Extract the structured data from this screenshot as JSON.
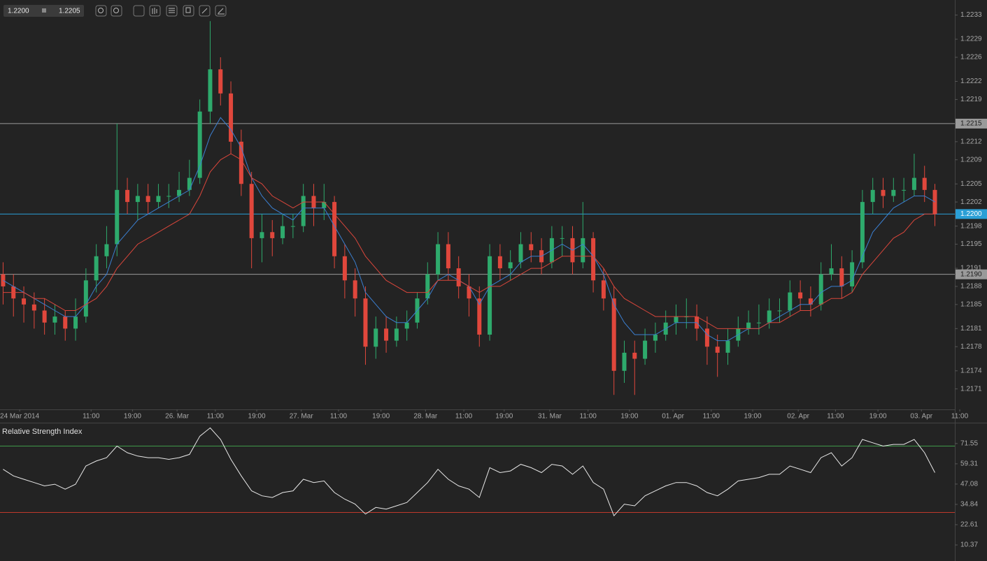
{
  "quote": {
    "bid": "1.2200",
    "ask": "1.2205"
  },
  "chart_data": [
    {
      "type": "candlestick",
      "up_color": "#2eaa6c",
      "down_color": "#e0473c",
      "xlim": [
        -0.3,
        92.6
      ],
      "ylim": [
        1.21676,
        1.22355
      ],
      "yticks": [
        1.2233,
        1.2229,
        1.2226,
        1.2222,
        1.2219,
        1.2212,
        1.2209,
        1.2205,
        1.2202,
        1.2198,
        1.2195,
        1.2191,
        1.2188,
        1.2185,
        1.2181,
        1.2178,
        1.2174,
        1.2171
      ],
      "xticks": [
        {
          "value": 1.6,
          "label": "24 Mar 2014"
        },
        {
          "value": 8.5,
          "label": "11:00"
        },
        {
          "value": 12.5,
          "label": "19:00"
        },
        {
          "value": 16.8,
          "label": "26. Mar"
        },
        {
          "value": 20.5,
          "label": "11:00"
        },
        {
          "value": 24.5,
          "label": "19:00"
        },
        {
          "value": 28.8,
          "label": "27. Mar"
        },
        {
          "value": 32.4,
          "label": "11:00"
        },
        {
          "value": 36.5,
          "label": "19:00"
        },
        {
          "value": 40.8,
          "label": "28. Mar"
        },
        {
          "value": 44.5,
          "label": "11:00"
        },
        {
          "value": 48.4,
          "label": "19:00"
        },
        {
          "value": 52.8,
          "label": "31. Mar"
        },
        {
          "value": 56.5,
          "label": "11:00"
        },
        {
          "value": 60.5,
          "label": "19:00"
        },
        {
          "value": 64.7,
          "label": "01. Apr"
        },
        {
          "value": 68.4,
          "label": "11:00"
        },
        {
          "value": 72.4,
          "label": "19:00"
        },
        {
          "value": 76.8,
          "label": "02. Apr"
        },
        {
          "value": 80.4,
          "label": "11:00"
        },
        {
          "value": 84.5,
          "label": "19:00"
        },
        {
          "value": 88.7,
          "label": "03. Apr"
        },
        {
          "value": 92.4,
          "label": "11:00"
        }
      ],
      "levels": [
        {
          "value": 1.2215,
          "label": "1.2215",
          "color": "#9a9a9a"
        },
        {
          "value": 1.22,
          "label": "1.2200",
          "color": "#2a9fd6"
        },
        {
          "value": 1.219,
          "label": "1.2190",
          "color": "#9a9a9a"
        }
      ],
      "candles": [
        [
          1.219,
          1.2192,
          1.2185,
          1.2188
        ],
        [
          1.2188,
          1.219,
          1.2183,
          1.2186
        ],
        [
          1.2186,
          1.2188,
          1.2182,
          1.2185
        ],
        [
          1.2185,
          1.2187,
          1.2181,
          1.2184
        ],
        [
          1.2184,
          1.2186,
          1.218,
          1.2182
        ],
        [
          1.2182,
          1.2185,
          1.218,
          1.2183
        ],
        [
          1.2183,
          1.2184,
          1.2179,
          1.2181
        ],
        [
          1.2181,
          1.2186,
          1.2179,
          1.2183
        ],
        [
          1.2183,
          1.2191,
          1.2182,
          1.2189
        ],
        [
          1.2189,
          1.2195,
          1.2187,
          1.2193
        ],
        [
          1.2193,
          1.2198,
          1.2191,
          1.2195
        ],
        [
          1.2195,
          1.2215,
          1.2193,
          1.2204
        ],
        [
          1.2204,
          1.2206,
          1.22,
          1.2202
        ],
        [
          1.2202,
          1.2205,
          1.2199,
          1.2203
        ],
        [
          1.2203,
          1.2205,
          1.22,
          1.2202
        ],
        [
          1.2202,
          1.2205,
          1.2201,
          1.2203
        ],
        [
          1.2203,
          1.2205,
          1.2201,
          1.2203
        ],
        [
          1.2203,
          1.2207,
          1.2202,
          1.2204
        ],
        [
          1.2204,
          1.2209,
          1.2203,
          1.2206
        ],
        [
          1.2206,
          1.2219,
          1.2205,
          1.2217
        ],
        [
          1.2217,
          1.2232,
          1.2215,
          1.2224
        ],
        [
          1.2224,
          1.2226,
          1.2218,
          1.222
        ],
        [
          1.222,
          1.2222,
          1.221,
          1.2212
        ],
        [
          1.2212,
          1.2214,
          1.2203,
          1.2205
        ],
        [
          1.2205,
          1.2207,
          1.2191,
          1.2196
        ],
        [
          1.2196,
          1.22,
          1.2192,
          1.2197
        ],
        [
          1.2197,
          1.2199,
          1.2193,
          1.2196
        ],
        [
          1.2196,
          1.22,
          1.2195,
          1.2198
        ],
        [
          1.2198,
          1.22,
          1.2196,
          1.2198
        ],
        [
          1.2198,
          1.2205,
          1.2197,
          1.2203
        ],
        [
          1.2203,
          1.2205,
          1.2198,
          1.2201
        ],
        [
          1.2201,
          1.2205,
          1.2199,
          1.2202
        ],
        [
          1.2202,
          1.2203,
          1.2191,
          1.2193
        ],
        [
          1.2193,
          1.2195,
          1.2186,
          1.2189
        ],
        [
          1.2189,
          1.2191,
          1.2183,
          1.2186
        ],
        [
          1.2186,
          1.2188,
          1.2175,
          1.2178
        ],
        [
          1.2178,
          1.2183,
          1.2176,
          1.2181
        ],
        [
          1.2181,
          1.2183,
          1.2177,
          1.2179
        ],
        [
          1.2179,
          1.2183,
          1.2178,
          1.2181
        ],
        [
          1.2181,
          1.2184,
          1.2179,
          1.2182
        ],
        [
          1.2182,
          1.2187,
          1.2181,
          1.2186
        ],
        [
          1.2186,
          1.2192,
          1.2185,
          1.219
        ],
        [
          1.219,
          1.2197,
          1.2189,
          1.2195
        ],
        [
          1.2195,
          1.2197,
          1.2189,
          1.2191
        ],
        [
          1.2191,
          1.2193,
          1.2186,
          1.2188
        ],
        [
          1.2188,
          1.219,
          1.2183,
          1.2186
        ],
        [
          1.2186,
          1.2188,
          1.2178,
          1.218
        ],
        [
          1.218,
          1.2195,
          1.2179,
          1.2193
        ],
        [
          1.2193,
          1.2195,
          1.2189,
          1.2191
        ],
        [
          1.2191,
          1.2194,
          1.2189,
          1.2192
        ],
        [
          1.2192,
          1.2197,
          1.2191,
          1.2195
        ],
        [
          1.2195,
          1.2197,
          1.2192,
          1.2194
        ],
        [
          1.2194,
          1.2196,
          1.219,
          1.2192
        ],
        [
          1.2192,
          1.2198,
          1.2191,
          1.2196
        ],
        [
          1.2196,
          1.2198,
          1.2193,
          1.2196
        ],
        [
          1.2196,
          1.2198,
          1.219,
          1.2192
        ],
        [
          1.2192,
          1.2202,
          1.2191,
          1.2196
        ],
        [
          1.2196,
          1.2197,
          1.2187,
          1.2189
        ],
        [
          1.2189,
          1.2191,
          1.2184,
          1.2186
        ],
        [
          1.2186,
          1.2188,
          1.217,
          1.2174
        ],
        [
          1.2174,
          1.2179,
          1.2172,
          1.2177
        ],
        [
          1.2177,
          1.2179,
          1.217,
          1.2176
        ],
        [
          1.2176,
          1.2181,
          1.2175,
          1.2179
        ],
        [
          1.2179,
          1.2182,
          1.2177,
          1.218
        ],
        [
          1.218,
          1.2184,
          1.2179,
          1.2182
        ],
        [
          1.2182,
          1.2185,
          1.218,
          1.2183
        ],
        [
          1.2183,
          1.2186,
          1.2181,
          1.2183
        ],
        [
          1.2183,
          1.2185,
          1.2179,
          1.2181
        ],
        [
          1.2181,
          1.2183,
          1.2175,
          1.2178
        ],
        [
          1.2178,
          1.218,
          1.2173,
          1.2177
        ],
        [
          1.2177,
          1.2181,
          1.2175,
          1.2179
        ],
        [
          1.2179,
          1.2183,
          1.2178,
          1.2181
        ],
        [
          1.2181,
          1.2184,
          1.218,
          1.2182
        ],
        [
          1.2182,
          1.2185,
          1.218,
          1.2182
        ],
        [
          1.2182,
          1.2186,
          1.2181,
          1.2184
        ],
        [
          1.2184,
          1.2186,
          1.2182,
          1.2184
        ],
        [
          1.2184,
          1.2189,
          1.2183,
          1.2187
        ],
        [
          1.2187,
          1.2189,
          1.2184,
          1.2186
        ],
        [
          1.2186,
          1.2188,
          1.2183,
          1.2185
        ],
        [
          1.2185,
          1.2192,
          1.2184,
          1.219
        ],
        [
          1.219,
          1.2195,
          1.2189,
          1.2191
        ],
        [
          1.2191,
          1.2193,
          1.2186,
          1.2188
        ],
        [
          1.2188,
          1.2194,
          1.2187,
          1.2192
        ],
        [
          1.2192,
          1.2204,
          1.2191,
          1.2202
        ],
        [
          1.2202,
          1.2206,
          1.22,
          1.2204
        ],
        [
          1.2204,
          1.2206,
          1.2201,
          1.2203
        ],
        [
          1.2203,
          1.2206,
          1.2202,
          1.2204
        ],
        [
          1.2204,
          1.2206,
          1.2202,
          1.2204
        ],
        [
          1.2204,
          1.221,
          1.2203,
          1.2206
        ],
        [
          1.2206,
          1.2208,
          1.2202,
          1.2204
        ],
        [
          1.2204,
          1.2205,
          1.2198,
          1.22
        ]
      ],
      "series": [
        {
          "color": "#3b7fd0",
          "values": [
            1.2189,
            1.2188,
            1.2187,
            1.2186,
            1.2185,
            1.2184,
            1.2183,
            1.2183,
            1.2185,
            1.2188,
            1.219,
            1.2195,
            1.2197,
            1.2199,
            1.22,
            1.2201,
            1.2202,
            1.2203,
            1.2204,
            1.2208,
            1.2213,
            1.2216,
            1.2214,
            1.2211,
            1.2206,
            1.2203,
            1.2201,
            1.22,
            1.2199,
            1.2201,
            1.2201,
            1.2201,
            1.2198,
            1.2195,
            1.2192,
            1.2187,
            1.2185,
            1.2183,
            1.2182,
            1.2182,
            1.2184,
            1.2186,
            1.2189,
            1.219,
            1.2189,
            1.2188,
            1.2185,
            1.2188,
            1.2189,
            1.219,
            1.2192,
            1.2193,
            1.2193,
            1.2194,
            1.2195,
            1.2194,
            1.2195,
            1.2193,
            1.219,
            1.2185,
            1.2182,
            1.218,
            1.218,
            1.218,
            1.2181,
            1.2182,
            1.2182,
            1.2182,
            1.218,
            1.2179,
            1.2179,
            1.218,
            1.2181,
            1.2181,
            1.2182,
            1.2183,
            1.2184,
            1.2185,
            1.2185,
            1.2187,
            1.2188,
            1.2188,
            1.2189,
            1.2193,
            1.2197,
            1.2199,
            1.2201,
            1.2202,
            1.2203,
            1.2203,
            1.2202
          ]
        },
        {
          "color": "#d9463b",
          "values": [
            1.2187,
            1.2187,
            1.2187,
            1.2186,
            1.2186,
            1.2185,
            1.2184,
            1.2184,
            1.2185,
            1.2186,
            1.2188,
            1.2191,
            1.2193,
            1.2195,
            1.2196,
            1.2197,
            1.2198,
            1.2199,
            1.22,
            1.2203,
            1.2207,
            1.2209,
            1.221,
            1.2209,
            1.2206,
            1.2205,
            1.2203,
            1.2202,
            1.2201,
            1.2202,
            1.2202,
            1.2202,
            1.22,
            1.2198,
            1.2196,
            1.2193,
            1.2191,
            1.2189,
            1.2188,
            1.2187,
            1.2187,
            1.2187,
            1.2189,
            1.2189,
            1.2189,
            1.2188,
            1.2187,
            1.2188,
            1.2188,
            1.2189,
            1.219,
            1.2191,
            1.2191,
            1.2192,
            1.2193,
            1.2193,
            1.2193,
            1.2193,
            1.2191,
            1.2188,
            1.2186,
            1.2185,
            1.2184,
            1.2183,
            1.2183,
            1.2183,
            1.2183,
            1.2183,
            1.2182,
            1.2181,
            1.2181,
            1.2181,
            1.2181,
            1.2181,
            1.2182,
            1.2182,
            1.2183,
            1.2184,
            1.2184,
            1.2185,
            1.2186,
            1.2186,
            1.2187,
            1.219,
            1.2192,
            1.2194,
            1.2196,
            1.2197,
            1.2199,
            1.22,
            1.22
          ]
        }
      ]
    },
    {
      "type": "line",
      "title": "Relative Strength Index",
      "xlim": [
        -0.3,
        92.6
      ],
      "ylim": [
        0.7,
        83.7
      ],
      "yticks": [
        71.55,
        59.31,
        47.08,
        34.84,
        22.61,
        10.37
      ],
      "levels": [
        {
          "value": 70,
          "color": "#3f9a4a"
        },
        {
          "value": 30,
          "color": "#c0392b"
        }
      ],
      "series": [
        {
          "color": "#e8e8e8",
          "values": [
            56,
            52,
            50,
            48,
            46,
            47,
            44,
            47,
            58,
            61,
            63,
            70,
            66,
            64,
            63,
            63,
            62,
            63,
            65,
            76,
            81,
            74,
            62,
            52,
            43,
            40,
            39,
            42,
            43,
            50,
            48,
            49,
            42,
            38,
            35,
            29,
            33,
            32,
            34,
            36,
            42,
            48,
            56,
            50,
            46,
            44,
            39,
            57,
            54,
            55,
            59,
            57,
            54,
            59,
            58,
            53,
            58,
            48,
            44,
            28,
            35,
            34,
            40,
            43,
            46,
            48,
            48,
            46,
            42,
            40,
            44,
            49,
            50,
            51,
            53,
            53,
            58,
            56,
            54,
            63,
            66,
            58,
            63,
            74,
            72,
            70,
            71,
            71,
            74,
            66,
            54
          ]
        }
      ]
    }
  ]
}
